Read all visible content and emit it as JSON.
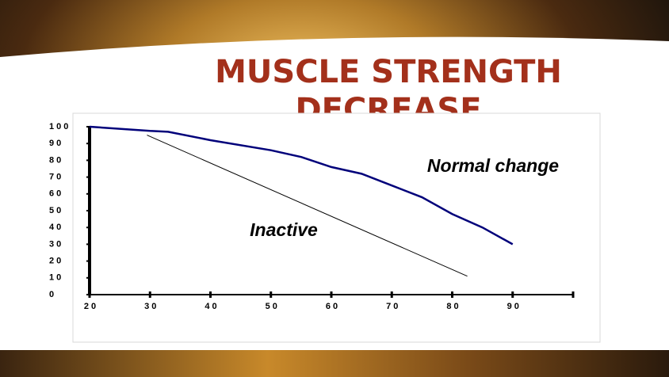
{
  "chart_data": {
    "type": "line",
    "title": [
      "MUSCLE STRENGTH",
      "DECREASE"
    ],
    "xlim": [
      20,
      100
    ],
    "xticks": [
      20,
      30,
      40,
      50,
      60,
      70,
      80,
      90
    ],
    "ylim": [
      0,
      100
    ],
    "yticks": [
      0,
      10,
      20,
      30,
      40,
      50,
      60,
      70,
      80,
      90,
      100
    ],
    "series": [
      {
        "name": "Normal change",
        "color": "#00007a",
        "x": [
          20,
          30,
          33,
          40,
          50,
          55,
          60,
          65,
          70,
          75,
          80,
          85,
          90
        ],
        "values": [
          100,
          97.5,
          97,
          92,
          86,
          82,
          76,
          72,
          65,
          58,
          48,
          40,
          30
        ]
      },
      {
        "name": "Inactive",
        "color": "#000000",
        "x": [
          29.5,
          82.5
        ],
        "values": [
          95,
          11
        ]
      }
    ]
  }
}
